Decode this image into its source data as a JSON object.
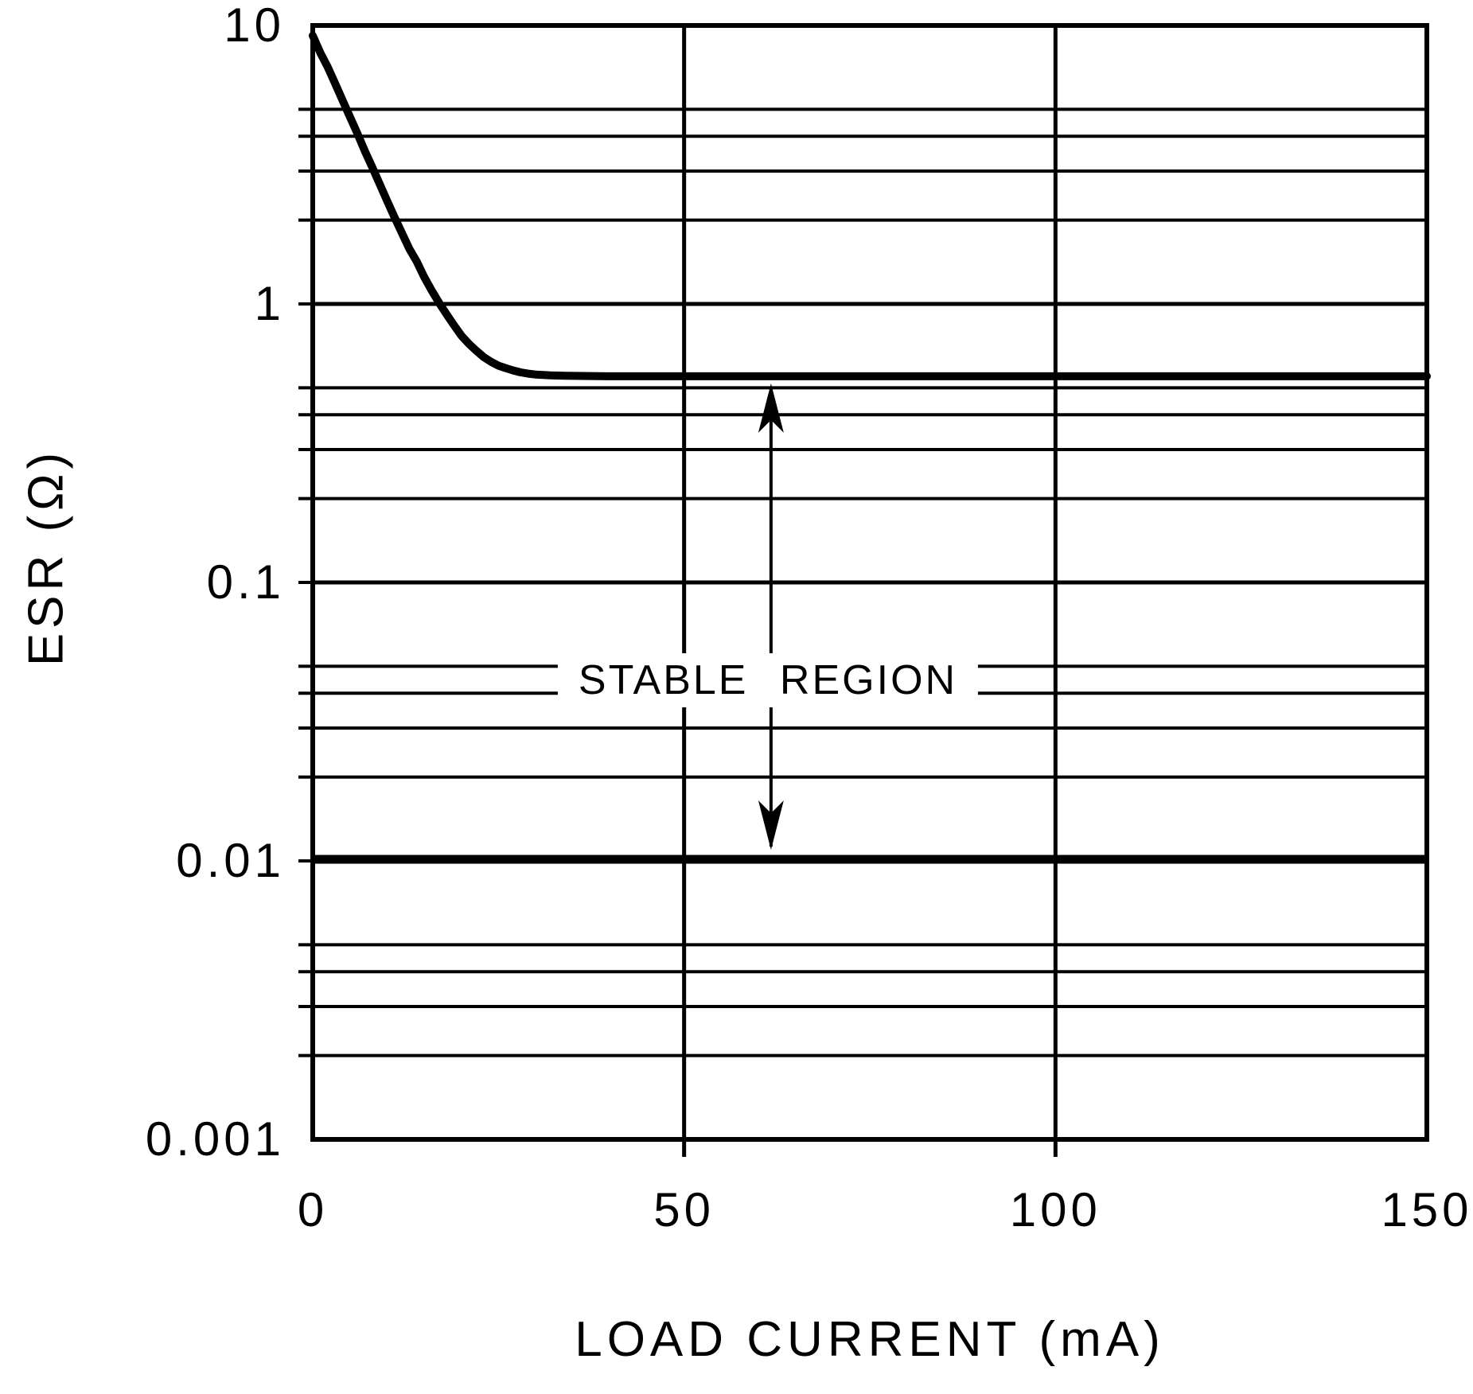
{
  "figure": {
    "y_axis_title": "ESR (Ω)",
    "x_axis_title": "LOAD CURRENT (mA)",
    "annotation_label": "STABLE REGION"
  },
  "chart_data": {
    "type": "line",
    "title": "",
    "xlabel": "LOAD CURRENT (mA)",
    "ylabel": "ESR (Ω)",
    "x_range_mA": [
      0,
      150
    ],
    "y_range_ohms": [
      0.001,
      10
    ],
    "y_scale": "log",
    "grid": "on",
    "legend": "none",
    "x_ticks": [
      {
        "label": "0",
        "value": 0
      },
      {
        "label": "50",
        "value": 50
      },
      {
        "label": "100",
        "value": 100
      },
      {
        "label": "150",
        "value": 150
      }
    ],
    "y_ticks": [
      {
        "label": "10",
        "value": 10
      },
      {
        "label": "1",
        "value": 1
      },
      {
        "label": "0.1",
        "value": 0.1
      },
      {
        "label": "0.01",
        "value": 0.01
      },
      {
        "label": "0.001",
        "value": 0.001
      }
    ],
    "x_gridlines": [
      50,
      100
    ],
    "y_gridlines": [
      5,
      4,
      3,
      2,
      1,
      0.5,
      0.4,
      0.3,
      0.2,
      0.1,
      0.05,
      0.04,
      0.03,
      0.02,
      0.01,
      0.005,
      0.004,
      0.003,
      0.002
    ],
    "y_major_gridlines": [
      1,
      0.1,
      0.01
    ],
    "series": [
      {
        "name": "upper-esr-stability-limit",
        "points": [
          [
            0,
            9.2
          ],
          [
            1,
            8.0
          ],
          [
            2,
            7.1
          ],
          [
            3,
            6.2
          ],
          [
            4,
            5.4
          ],
          [
            5,
            4.7
          ],
          [
            6,
            4.1
          ],
          [
            7,
            3.55
          ],
          [
            8,
            3.1
          ],
          [
            9,
            2.7
          ],
          [
            10,
            2.35
          ],
          [
            11,
            2.05
          ],
          [
            12,
            1.8
          ],
          [
            13,
            1.58
          ],
          [
            14,
            1.42
          ],
          [
            15,
            1.25
          ],
          [
            16,
            1.12
          ],
          [
            17,
            1.01
          ],
          [
            18,
            0.92
          ],
          [
            19,
            0.84
          ],
          [
            20,
            0.77
          ],
          [
            21,
            0.72
          ],
          [
            22,
            0.68
          ],
          [
            23,
            0.645
          ],
          [
            24,
            0.62
          ],
          [
            25,
            0.6
          ],
          [
            26,
            0.588
          ],
          [
            27,
            0.577
          ],
          [
            28,
            0.568
          ],
          [
            29,
            0.562
          ],
          [
            30,
            0.558
          ],
          [
            32,
            0.554
          ],
          [
            34,
            0.552
          ],
          [
            40,
            0.55
          ],
          [
            150,
            0.55
          ]
        ]
      },
      {
        "name": "lower-esr-stability-limit",
        "points": [
          [
            0,
            0.01
          ],
          [
            150,
            0.01
          ]
        ]
      }
    ],
    "annotations": [
      {
        "text": "STABLE REGION",
        "x_mA": 61.7,
        "between_ohms": [
          0.01,
          0.55
        ],
        "arrow": "double-headed-vertical"
      }
    ]
  }
}
